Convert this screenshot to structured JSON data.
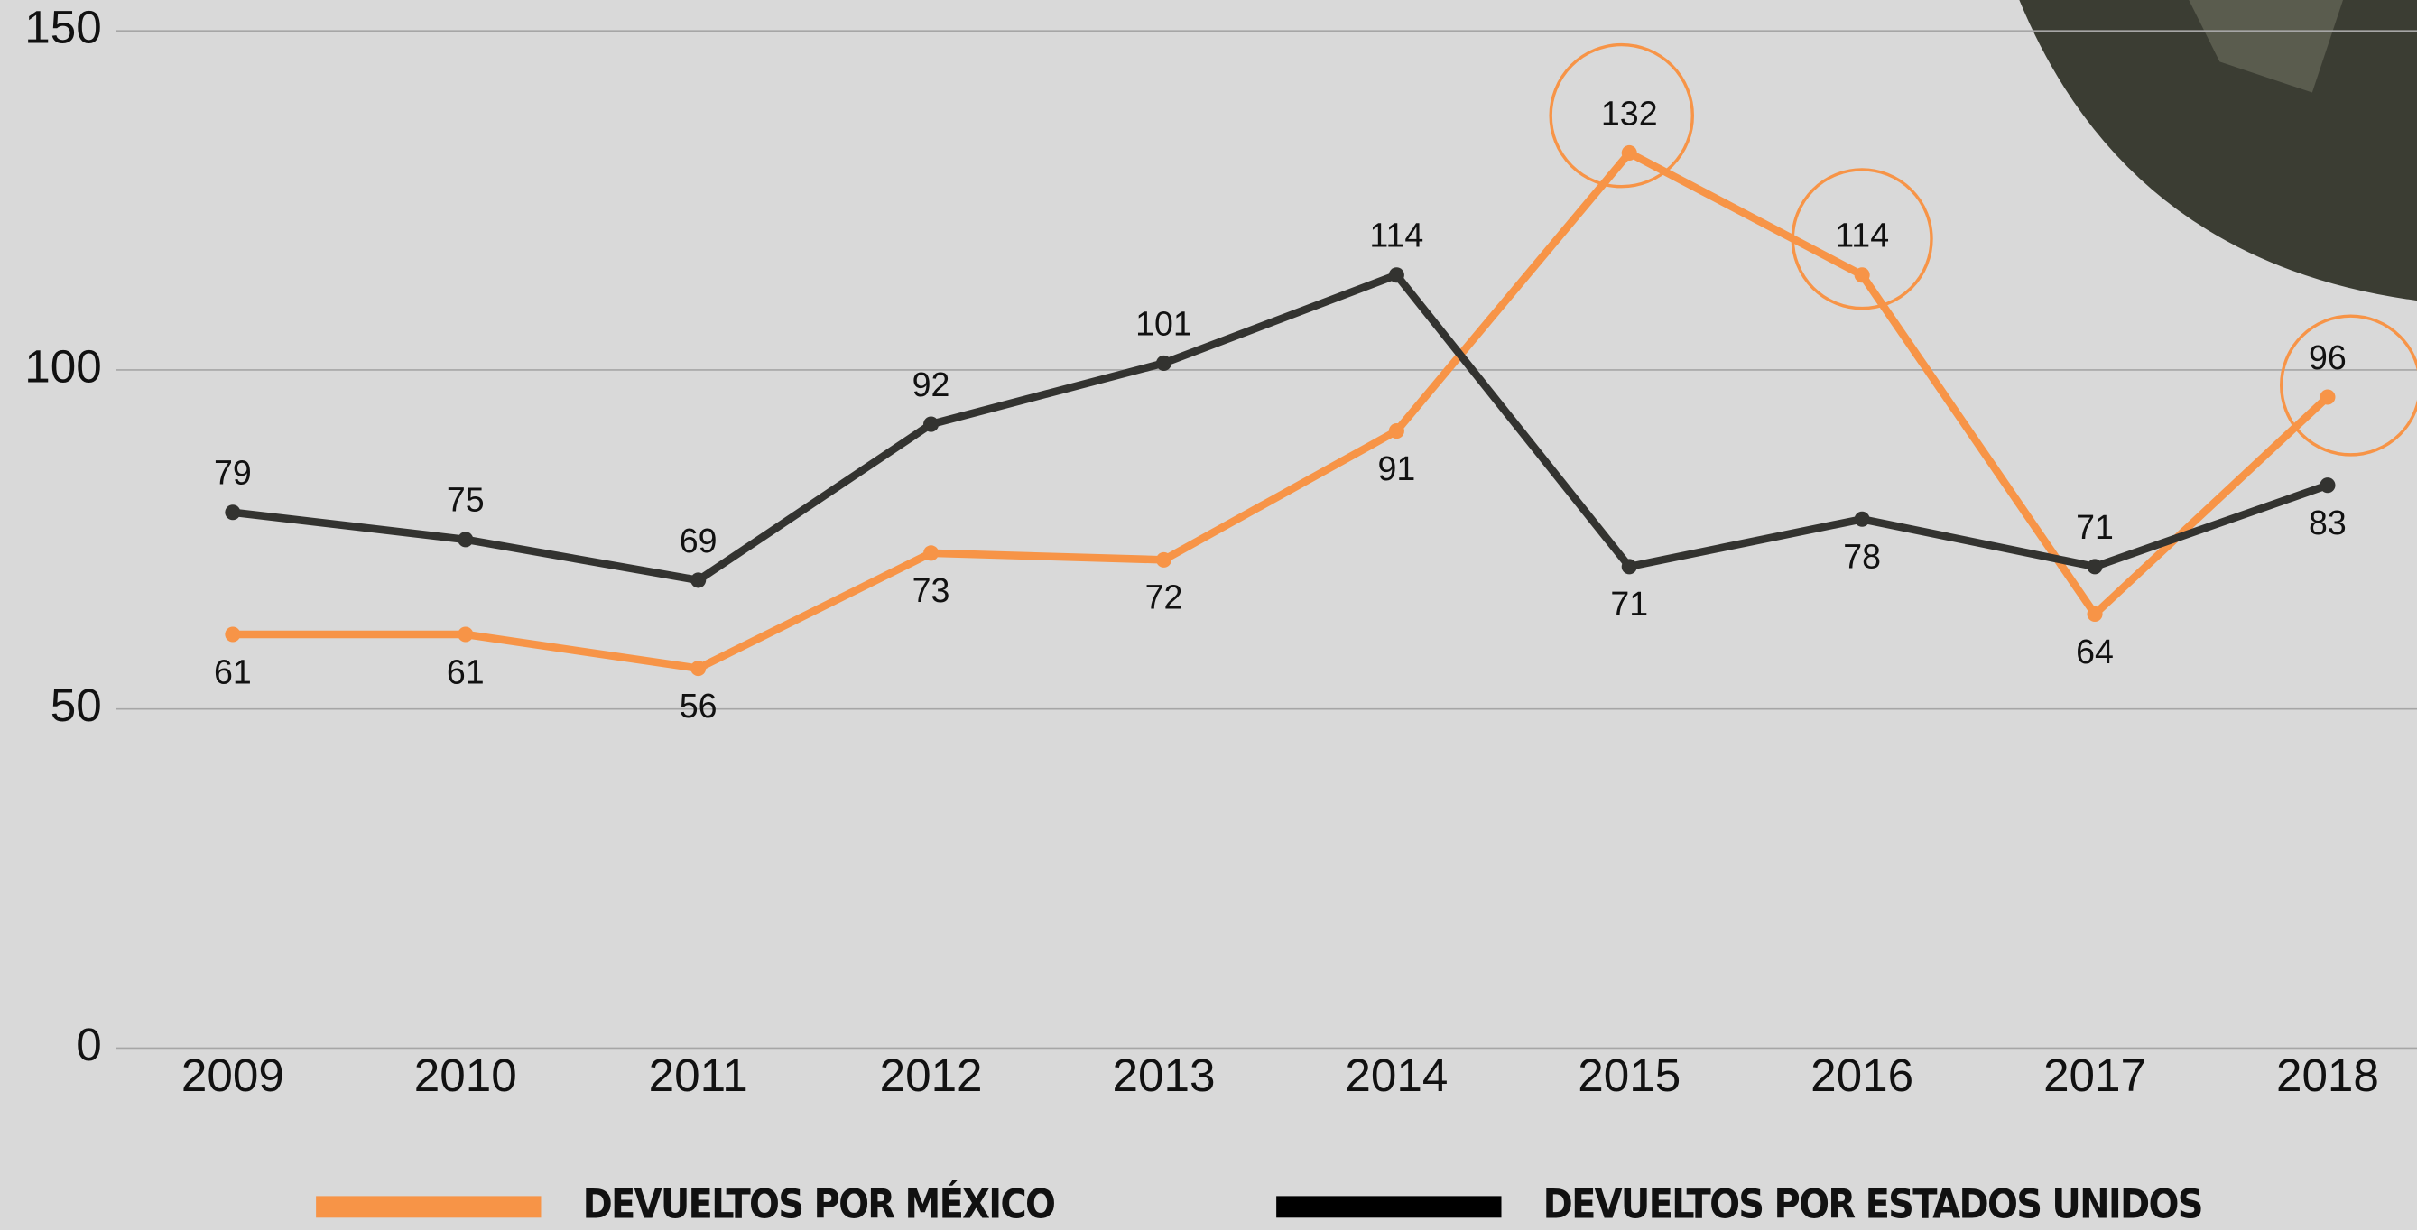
{
  "chart_data": {
    "type": "line",
    "categories": [
      "2009",
      "2010",
      "2011",
      "2012",
      "2013",
      "2014",
      "2015",
      "2016",
      "2017",
      "2018"
    ],
    "series": [
      {
        "name": "DEVUELTOS POR MÉXICO",
        "color": "#f79447",
        "values": [
          61,
          61,
          56,
          73,
          72,
          91,
          132,
          114,
          64,
          96
        ]
      },
      {
        "name": "DEVUELTOS POR ESTADOS UNIDOS",
        "color": "#333330",
        "values": [
          79,
          75,
          69,
          92,
          101,
          114,
          71,
          78,
          71,
          83
        ]
      }
    ],
    "ylim": [
      0,
      150
    ],
    "yticks": [
      0,
      50,
      100,
      150
    ],
    "grid": true
  }
}
